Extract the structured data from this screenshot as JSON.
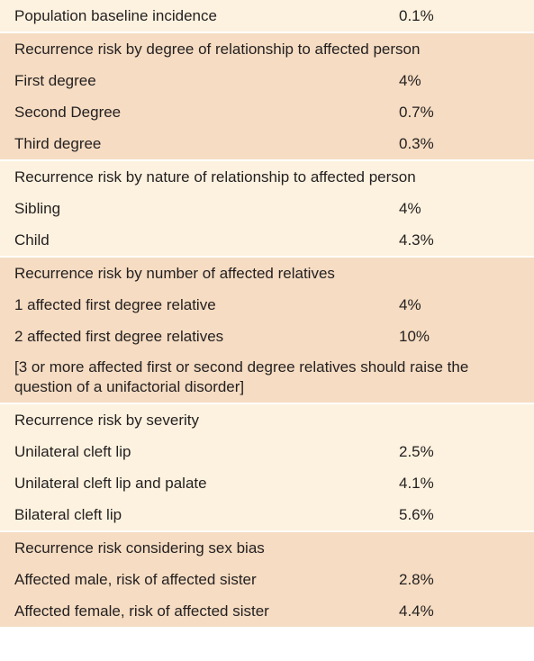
{
  "sections": [
    {
      "rows": [
        [
          "Population baseline incidence",
          "0.1%"
        ]
      ]
    },
    {
      "heading": "Recurrence risk by degree of relationship to affected person",
      "rows": [
        [
          "First degree",
          "4%"
        ],
        [
          "Second Degree",
          "0.7%"
        ],
        [
          "Third degree",
          "0.3%"
        ]
      ]
    },
    {
      "heading": "Recurrence risk by nature of relationship to affected person",
      "rows": [
        [
          "Sibling",
          "4%"
        ],
        [
          "Child",
          "4.3%"
        ]
      ]
    },
    {
      "heading": "Recurrence risk by number of affected relatives",
      "rows": [
        [
          "1 affected first degree relative",
          "4%"
        ],
        [
          "2 affected first degree relatives",
          "10%"
        ]
      ],
      "note": "[3 or more affected first or second degree relatives should raise the question of a unifactorial disorder]"
    },
    {
      "heading": "Recurrence risk by severity",
      "rows": [
        [
          "Unilateral cleft lip",
          "2.5%"
        ],
        [
          "Unilateral cleft lip and palate",
          "4.1%"
        ],
        [
          "Bilateral cleft lip",
          "5.6%"
        ]
      ]
    },
    {
      "heading": "Recurrence risk considering sex bias",
      "rows": [
        [
          "Affected male, risk of affected sister",
          "2.8%"
        ],
        [
          "Affected female, risk of affected sister",
          "4.4%"
        ]
      ]
    }
  ]
}
